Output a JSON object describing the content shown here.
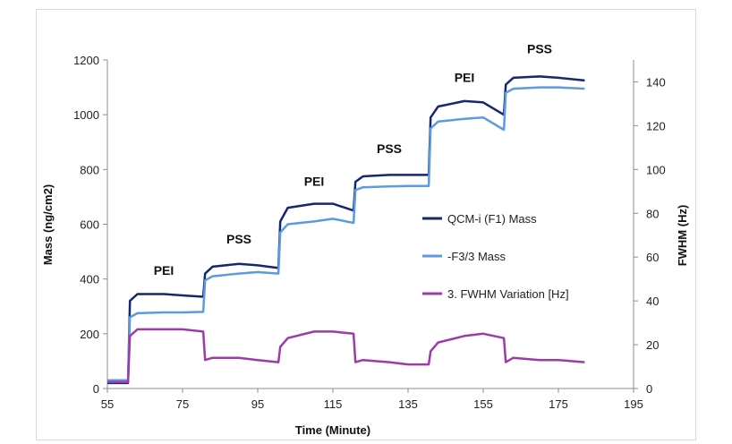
{
  "chart_data": {
    "type": "line",
    "title": "",
    "xlabel": "Time (Minute)",
    "ylabel": "Mass (ng/cm2)",
    "y2label": "FWHM (Hz)",
    "xlim": [
      55,
      195
    ],
    "ylim": [
      0,
      1200
    ],
    "y2lim": [
      0,
      150
    ],
    "x_ticks": [
      55,
      75,
      95,
      115,
      135,
      155,
      175,
      195
    ],
    "y_ticks": [
      0,
      200,
      400,
      600,
      800,
      1000,
      1200
    ],
    "y2_ticks": [
      0,
      20,
      40,
      60,
      80,
      100,
      120,
      140
    ],
    "grid": false,
    "legend_position": "center-right",
    "annotations": [
      {
        "text": "PEI",
        "x": 70,
        "y": 415
      },
      {
        "text": "PSS",
        "x": 90,
        "y": 530
      },
      {
        "text": "PEI",
        "x": 110,
        "y": 740
      },
      {
        "text": "PSS",
        "x": 130,
        "y": 860
      },
      {
        "text": "PEI",
        "x": 150,
        "y": 1120
      },
      {
        "text": "PSS",
        "x": 170,
        "y": 1225
      }
    ],
    "series": [
      {
        "name": "QCM-i (F1) Mass",
        "axis": "left",
        "color": "#14286e",
        "points": [
          [
            55,
            20
          ],
          [
            60.5,
            20
          ],
          [
            61,
            320
          ],
          [
            63,
            345
          ],
          [
            70,
            345
          ],
          [
            75,
            340
          ],
          [
            80.5,
            335
          ],
          [
            81,
            420
          ],
          [
            83,
            445
          ],
          [
            90,
            455
          ],
          [
            95,
            450
          ],
          [
            100.5,
            440
          ],
          [
            101,
            610
          ],
          [
            103,
            660
          ],
          [
            110,
            675
          ],
          [
            115,
            675
          ],
          [
            120.5,
            650
          ],
          [
            121,
            755
          ],
          [
            123,
            775
          ],
          [
            130,
            780
          ],
          [
            135,
            780
          ],
          [
            140.5,
            780
          ],
          [
            141,
            990
          ],
          [
            143,
            1030
          ],
          [
            150,
            1050
          ],
          [
            155,
            1045
          ],
          [
            160.5,
            1000
          ],
          [
            161,
            1110
          ],
          [
            163,
            1135
          ],
          [
            170,
            1140
          ],
          [
            175,
            1135
          ],
          [
            182,
            1125
          ]
        ]
      },
      {
        "name": "-F3/3 Mass",
        "axis": "left",
        "color": "#5b9be0",
        "points": [
          [
            55,
            30
          ],
          [
            60.5,
            30
          ],
          [
            61,
            260
          ],
          [
            63,
            275
          ],
          [
            70,
            278
          ],
          [
            75,
            278
          ],
          [
            80.5,
            280
          ],
          [
            81,
            395
          ],
          [
            83,
            410
          ],
          [
            90,
            420
          ],
          [
            95,
            425
          ],
          [
            100.5,
            420
          ],
          [
            101,
            570
          ],
          [
            103,
            600
          ],
          [
            110,
            610
          ],
          [
            115,
            620
          ],
          [
            120.5,
            605
          ],
          [
            121,
            725
          ],
          [
            123,
            735
          ],
          [
            130,
            738
          ],
          [
            135,
            740
          ],
          [
            140.5,
            740
          ],
          [
            141,
            950
          ],
          [
            143,
            975
          ],
          [
            150,
            985
          ],
          [
            155,
            990
          ],
          [
            160.5,
            945
          ],
          [
            161,
            1080
          ],
          [
            163,
            1095
          ],
          [
            170,
            1100
          ],
          [
            175,
            1100
          ],
          [
            182,
            1095
          ]
        ]
      },
      {
        "name": "3. FWHM Variation [Hz]",
        "axis": "right",
        "color": "#9c3ca8",
        "points": [
          [
            55,
            3
          ],
          [
            60.5,
            3
          ],
          [
            61,
            24
          ],
          [
            63,
            27
          ],
          [
            70,
            27
          ],
          [
            75,
            27
          ],
          [
            80.5,
            26
          ],
          [
            81,
            13
          ],
          [
            83,
            14
          ],
          [
            90,
            14
          ],
          [
            95,
            13
          ],
          [
            100.5,
            12
          ],
          [
            101,
            19
          ],
          [
            103,
            23
          ],
          [
            110,
            26
          ],
          [
            115,
            26
          ],
          [
            120.5,
            25
          ],
          [
            121,
            12
          ],
          [
            123,
            13
          ],
          [
            130,
            12
          ],
          [
            135,
            11
          ],
          [
            140.5,
            11
          ],
          [
            141,
            17
          ],
          [
            143,
            21
          ],
          [
            150,
            24
          ],
          [
            155,
            25
          ],
          [
            160.5,
            23
          ],
          [
            161,
            12
          ],
          [
            163,
            14
          ],
          [
            170,
            13
          ],
          [
            175,
            13
          ],
          [
            182,
            12
          ]
        ]
      }
    ]
  }
}
